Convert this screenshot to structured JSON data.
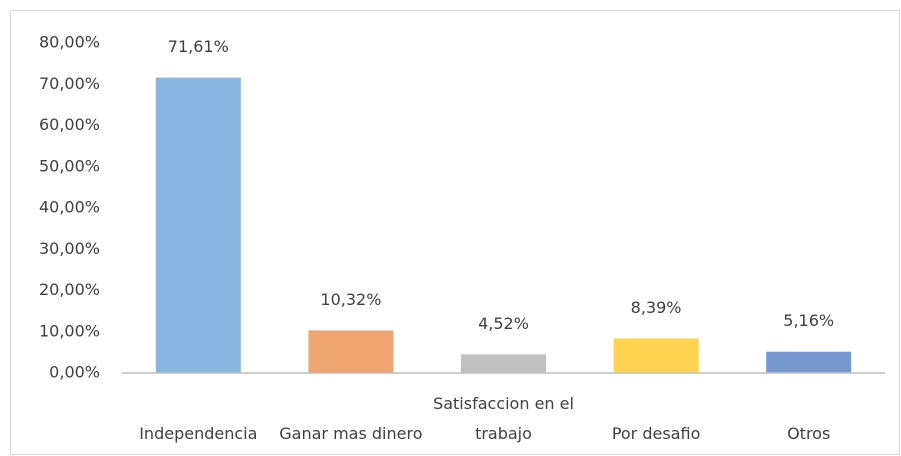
{
  "chart_data": {
    "type": "bar",
    "categories": [
      "Independencia",
      "Ganar mas dinero",
      "Satisfaccion en el trabajo",
      "Por desafio",
      "Otros"
    ],
    "values": [
      71.61,
      10.32,
      4.52,
      8.39,
      5.16
    ],
    "value_labels": [
      "71,61%",
      "10,32%",
      "4,52%",
      "8,39%",
      "5,16%"
    ],
    "colors": [
      "#88b6e0",
      "#f0a670",
      "#bfbfbf",
      "#ffd24f",
      "#7598d0"
    ],
    "ylim": [
      0,
      80
    ],
    "yticks": [
      {
        "value": 0,
        "label": "0,00%"
      },
      {
        "value": 10,
        "label": "10,00%"
      },
      {
        "value": 20,
        "label": "20,00%"
      },
      {
        "value": 30,
        "label": "30,00%"
      },
      {
        "value": 40,
        "label": "40,00%"
      },
      {
        "value": 50,
        "label": "50,00%"
      },
      {
        "value": 60,
        "label": "60,00%"
      },
      {
        "value": 70,
        "label": "70,00%"
      },
      {
        "value": 80,
        "label": "80,00%"
      }
    ],
    "grid": false
  }
}
